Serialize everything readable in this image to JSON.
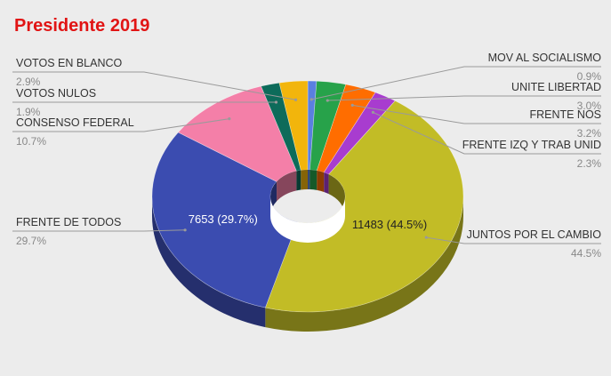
{
  "chart_data": {
    "type": "pie",
    "subtype": "3d-donut",
    "title": "Presidente 2019",
    "title_color": "#e11414",
    "categories": [
      "MOV AL SOCIALISMO",
      "UNITE LIBERTAD",
      "FRENTE NOS",
      "FRENTE IZQ Y TRAB UNID",
      "JUNTOS POR EL CAMBIO",
      "FRENTE DE TODOS",
      "CONSENSO FEDERAL",
      "VOTOS NULOS",
      "VOTOS EN BLANCO"
    ],
    "percents": [
      0.9,
      3.0,
      3.2,
      2.3,
      44.5,
      29.7,
      10.7,
      1.9,
      2.9
    ],
    "percent_labels": [
      "0.9%",
      "3.0%",
      "3.2%",
      "2.3%",
      "44.5%",
      "29.7%",
      "10.7%",
      "1.9%",
      "2.9%"
    ],
    "colors": [
      "#5a7fe0",
      "#27a24a",
      "#ff6d00",
      "#a83ccf",
      "#c2bc26",
      "#3b4cb0",
      "#f47fa8",
      "#0d6b5a",
      "#f2b50c"
    ],
    "data_labels": [
      {
        "category": "JUNTOS POR EL CAMBIO",
        "text": "11483 (44.5%)",
        "color": "#222222"
      },
      {
        "category": "FRENTE DE TODOS",
        "text": "7653 (29.7%)",
        "color": "#ffffff"
      }
    ],
    "legend": "callouts"
  }
}
